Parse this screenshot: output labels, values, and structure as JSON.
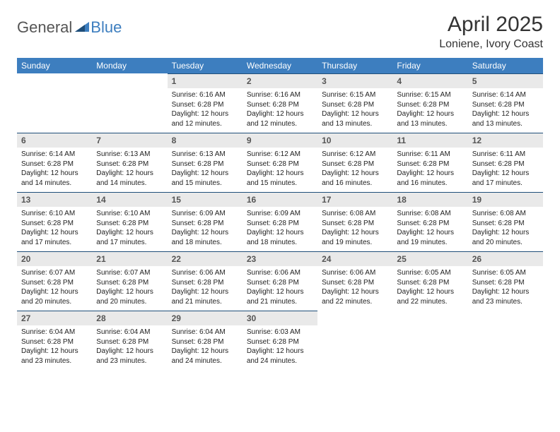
{
  "brand": {
    "part1": "General",
    "part2": "Blue"
  },
  "title": "April 2025",
  "location": "Loniene, Ivory Coast",
  "colors": {
    "header_bg": "#3d7ebf",
    "header_fg": "#ffffff",
    "numrow_bg": "#e9e9e9",
    "numrow_border": "#1f4e79",
    "text": "#222222",
    "brand_blue": "#3d7ebf",
    "brand_gray": "#555555"
  },
  "fonts": {
    "title_pt": 30,
    "location_pt": 16,
    "dayhead_pt": 12,
    "daynum_pt": 12,
    "cell_pt": 10
  },
  "daynames": [
    "Sunday",
    "Monday",
    "Tuesday",
    "Wednesday",
    "Thursday",
    "Friday",
    "Saturday"
  ],
  "weeks": [
    {
      "nums": [
        "",
        "",
        "1",
        "2",
        "3",
        "4",
        "5"
      ],
      "cells": [
        "",
        "",
        "Sunrise: 6:16 AM\nSunset: 6:28 PM\nDaylight: 12 hours and 12 minutes.",
        "Sunrise: 6:16 AM\nSunset: 6:28 PM\nDaylight: 12 hours and 12 minutes.",
        "Sunrise: 6:15 AM\nSunset: 6:28 PM\nDaylight: 12 hours and 13 minutes.",
        "Sunrise: 6:15 AM\nSunset: 6:28 PM\nDaylight: 12 hours and 13 minutes.",
        "Sunrise: 6:14 AM\nSunset: 6:28 PM\nDaylight: 12 hours and 13 minutes."
      ]
    },
    {
      "nums": [
        "6",
        "7",
        "8",
        "9",
        "10",
        "11",
        "12"
      ],
      "cells": [
        "Sunrise: 6:14 AM\nSunset: 6:28 PM\nDaylight: 12 hours and 14 minutes.",
        "Sunrise: 6:13 AM\nSunset: 6:28 PM\nDaylight: 12 hours and 14 minutes.",
        "Sunrise: 6:13 AM\nSunset: 6:28 PM\nDaylight: 12 hours and 15 minutes.",
        "Sunrise: 6:12 AM\nSunset: 6:28 PM\nDaylight: 12 hours and 15 minutes.",
        "Sunrise: 6:12 AM\nSunset: 6:28 PM\nDaylight: 12 hours and 16 minutes.",
        "Sunrise: 6:11 AM\nSunset: 6:28 PM\nDaylight: 12 hours and 16 minutes.",
        "Sunrise: 6:11 AM\nSunset: 6:28 PM\nDaylight: 12 hours and 17 minutes."
      ]
    },
    {
      "nums": [
        "13",
        "14",
        "15",
        "16",
        "17",
        "18",
        "19"
      ],
      "cells": [
        "Sunrise: 6:10 AM\nSunset: 6:28 PM\nDaylight: 12 hours and 17 minutes.",
        "Sunrise: 6:10 AM\nSunset: 6:28 PM\nDaylight: 12 hours and 17 minutes.",
        "Sunrise: 6:09 AM\nSunset: 6:28 PM\nDaylight: 12 hours and 18 minutes.",
        "Sunrise: 6:09 AM\nSunset: 6:28 PM\nDaylight: 12 hours and 18 minutes.",
        "Sunrise: 6:08 AM\nSunset: 6:28 PM\nDaylight: 12 hours and 19 minutes.",
        "Sunrise: 6:08 AM\nSunset: 6:28 PM\nDaylight: 12 hours and 19 minutes.",
        "Sunrise: 6:08 AM\nSunset: 6:28 PM\nDaylight: 12 hours and 20 minutes."
      ]
    },
    {
      "nums": [
        "20",
        "21",
        "22",
        "23",
        "24",
        "25",
        "26"
      ],
      "cells": [
        "Sunrise: 6:07 AM\nSunset: 6:28 PM\nDaylight: 12 hours and 20 minutes.",
        "Sunrise: 6:07 AM\nSunset: 6:28 PM\nDaylight: 12 hours and 20 minutes.",
        "Sunrise: 6:06 AM\nSunset: 6:28 PM\nDaylight: 12 hours and 21 minutes.",
        "Sunrise: 6:06 AM\nSunset: 6:28 PM\nDaylight: 12 hours and 21 minutes.",
        "Sunrise: 6:06 AM\nSunset: 6:28 PM\nDaylight: 12 hours and 22 minutes.",
        "Sunrise: 6:05 AM\nSunset: 6:28 PM\nDaylight: 12 hours and 22 minutes.",
        "Sunrise: 6:05 AM\nSunset: 6:28 PM\nDaylight: 12 hours and 23 minutes."
      ]
    },
    {
      "nums": [
        "27",
        "28",
        "29",
        "30",
        "",
        "",
        ""
      ],
      "cells": [
        "Sunrise: 6:04 AM\nSunset: 6:28 PM\nDaylight: 12 hours and 23 minutes.",
        "Sunrise: 6:04 AM\nSunset: 6:28 PM\nDaylight: 12 hours and 23 minutes.",
        "Sunrise: 6:04 AM\nSunset: 6:28 PM\nDaylight: 12 hours and 24 minutes.",
        "Sunrise: 6:03 AM\nSunset: 6:28 PM\nDaylight: 12 hours and 24 minutes.",
        "",
        "",
        ""
      ]
    }
  ]
}
